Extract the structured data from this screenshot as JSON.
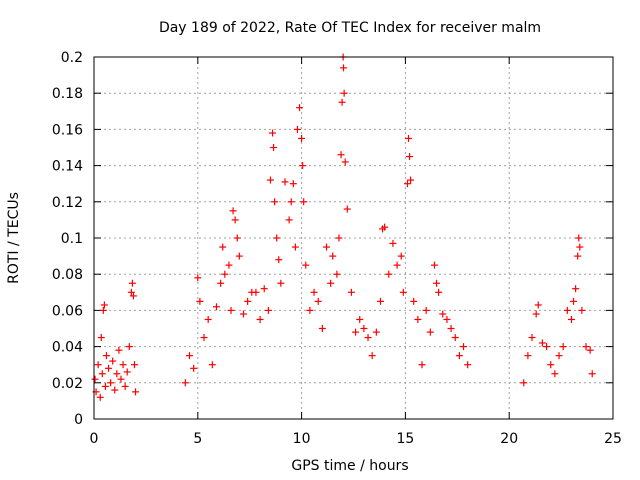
{
  "chart_data": {
    "type": "scatter",
    "title": "Day 189 of 2022, Rate Of TEC Index for receiver malm",
    "xlabel": "GPS time / hours",
    "ylabel": "ROTI / TECUs",
    "xlim": [
      0,
      25
    ],
    "ylim": [
      0,
      0.2
    ],
    "xticks": [
      0,
      5,
      10,
      15,
      20,
      25
    ],
    "xtick_labels": [
      "0",
      "5",
      "10",
      "15",
      "20",
      "25"
    ],
    "yticks": [
      0,
      0.02,
      0.04,
      0.06,
      0.08,
      0.1,
      0.12,
      0.14,
      0.16,
      0.18,
      0.2
    ],
    "ytick_labels": [
      "0",
      "0.02",
      "0.04",
      "0.06",
      "0.08",
      "0.1",
      "0.12",
      "0.14",
      "0.16",
      "0.18",
      "0.2"
    ],
    "grid": true,
    "marker": "+",
    "series": [
      {
        "color": "#ff0000",
        "points": [
          [
            0.05,
            0.022
          ],
          [
            0.1,
            0.015
          ],
          [
            0.2,
            0.03
          ],
          [
            0.3,
            0.012
          ],
          [
            0.35,
            0.045
          ],
          [
            0.4,
            0.025
          ],
          [
            0.45,
            0.06
          ],
          [
            0.5,
            0.063
          ],
          [
            0.55,
            0.018
          ],
          [
            0.6,
            0.035
          ],
          [
            0.7,
            0.028
          ],
          [
            0.8,
            0.02
          ],
          [
            0.9,
            0.032
          ],
          [
            1.0,
            0.016
          ],
          [
            1.1,
            0.025
          ],
          [
            1.2,
            0.038
          ],
          [
            1.3,
            0.022
          ],
          [
            1.4,
            0.03
          ],
          [
            1.5,
            0.018
          ],
          [
            1.6,
            0.026
          ],
          [
            1.7,
            0.04
          ],
          [
            1.8,
            0.07
          ],
          [
            1.85,
            0.075
          ],
          [
            1.9,
            0.068
          ],
          [
            1.95,
            0.03
          ],
          [
            2.0,
            0.015
          ],
          [
            4.4,
            0.02
          ],
          [
            4.6,
            0.035
          ],
          [
            4.8,
            0.028
          ],
          [
            5.0,
            0.078
          ],
          [
            5.1,
            0.065
          ],
          [
            5.3,
            0.045
          ],
          [
            5.5,
            0.055
          ],
          [
            5.7,
            0.03
          ],
          [
            5.9,
            0.062
          ],
          [
            6.1,
            0.075
          ],
          [
            6.2,
            0.095
          ],
          [
            6.3,
            0.08
          ],
          [
            6.5,
            0.085
          ],
          [
            6.6,
            0.06
          ],
          [
            6.7,
            0.115
          ],
          [
            6.8,
            0.11
          ],
          [
            6.9,
            0.1
          ],
          [
            7.0,
            0.09
          ],
          [
            7.2,
            0.058
          ],
          [
            7.4,
            0.065
          ],
          [
            7.6,
            0.07
          ],
          [
            7.8,
            0.07
          ],
          [
            8.0,
            0.055
          ],
          [
            8.2,
            0.072
          ],
          [
            8.4,
            0.06
          ],
          [
            8.5,
            0.132
          ],
          [
            8.6,
            0.158
          ],
          [
            8.65,
            0.15
          ],
          [
            8.7,
            0.12
          ],
          [
            8.8,
            0.1
          ],
          [
            8.9,
            0.088
          ],
          [
            9.0,
            0.075
          ],
          [
            9.2,
            0.131
          ],
          [
            9.4,
            0.11
          ],
          [
            9.5,
            0.12
          ],
          [
            9.6,
            0.13
          ],
          [
            9.7,
            0.095
          ],
          [
            9.8,
            0.16
          ],
          [
            9.9,
            0.172
          ],
          [
            10.0,
            0.155
          ],
          [
            10.05,
            0.14
          ],
          [
            10.1,
            0.12
          ],
          [
            10.2,
            0.085
          ],
          [
            10.4,
            0.06
          ],
          [
            10.6,
            0.07
          ],
          [
            10.8,
            0.065
          ],
          [
            11.0,
            0.05
          ],
          [
            11.2,
            0.095
          ],
          [
            11.4,
            0.075
          ],
          [
            11.5,
            0.09
          ],
          [
            11.7,
            0.08
          ],
          [
            11.8,
            0.1
          ],
          [
            11.9,
            0.146
          ],
          [
            11.95,
            0.175
          ],
          [
            12.0,
            0.2
          ],
          [
            12.02,
            0.194
          ],
          [
            12.05,
            0.18
          ],
          [
            12.1,
            0.142
          ],
          [
            12.2,
            0.116
          ],
          [
            12.4,
            0.07
          ],
          [
            12.6,
            0.048
          ],
          [
            12.8,
            0.055
          ],
          [
            13.0,
            0.05
          ],
          [
            13.2,
            0.045
          ],
          [
            13.4,
            0.035
          ],
          [
            13.6,
            0.048
          ],
          [
            13.8,
            0.065
          ],
          [
            13.9,
            0.105
          ],
          [
            14.0,
            0.106
          ],
          [
            14.2,
            0.08
          ],
          [
            14.4,
            0.097
          ],
          [
            14.6,
            0.085
          ],
          [
            14.8,
            0.09
          ],
          [
            14.9,
            0.07
          ],
          [
            15.1,
            0.13
          ],
          [
            15.15,
            0.155
          ],
          [
            15.2,
            0.145
          ],
          [
            15.25,
            0.132
          ],
          [
            15.4,
            0.065
          ],
          [
            15.6,
            0.055
          ],
          [
            15.8,
            0.03
          ],
          [
            16.0,
            0.06
          ],
          [
            16.2,
            0.048
          ],
          [
            16.4,
            0.085
          ],
          [
            16.5,
            0.075
          ],
          [
            16.6,
            0.07
          ],
          [
            16.8,
            0.058
          ],
          [
            17.0,
            0.055
          ],
          [
            17.2,
            0.05
          ],
          [
            17.4,
            0.045
          ],
          [
            17.6,
            0.035
          ],
          [
            17.8,
            0.04
          ],
          [
            18.0,
            0.03
          ],
          [
            20.7,
            0.02
          ],
          [
            20.9,
            0.035
          ],
          [
            21.1,
            0.045
          ],
          [
            21.3,
            0.058
          ],
          [
            21.4,
            0.063
          ],
          [
            21.6,
            0.042
          ],
          [
            21.8,
            0.04
          ],
          [
            22.0,
            0.03
          ],
          [
            22.2,
            0.025
          ],
          [
            22.4,
            0.035
          ],
          [
            22.6,
            0.04
          ],
          [
            22.8,
            0.06
          ],
          [
            23.0,
            0.055
          ],
          [
            23.1,
            0.065
          ],
          [
            23.2,
            0.072
          ],
          [
            23.3,
            0.09
          ],
          [
            23.35,
            0.1
          ],
          [
            23.4,
            0.095
          ],
          [
            23.5,
            0.06
          ],
          [
            23.7,
            0.04
          ],
          [
            23.9,
            0.038
          ],
          [
            24.0,
            0.025
          ]
        ]
      }
    ]
  }
}
